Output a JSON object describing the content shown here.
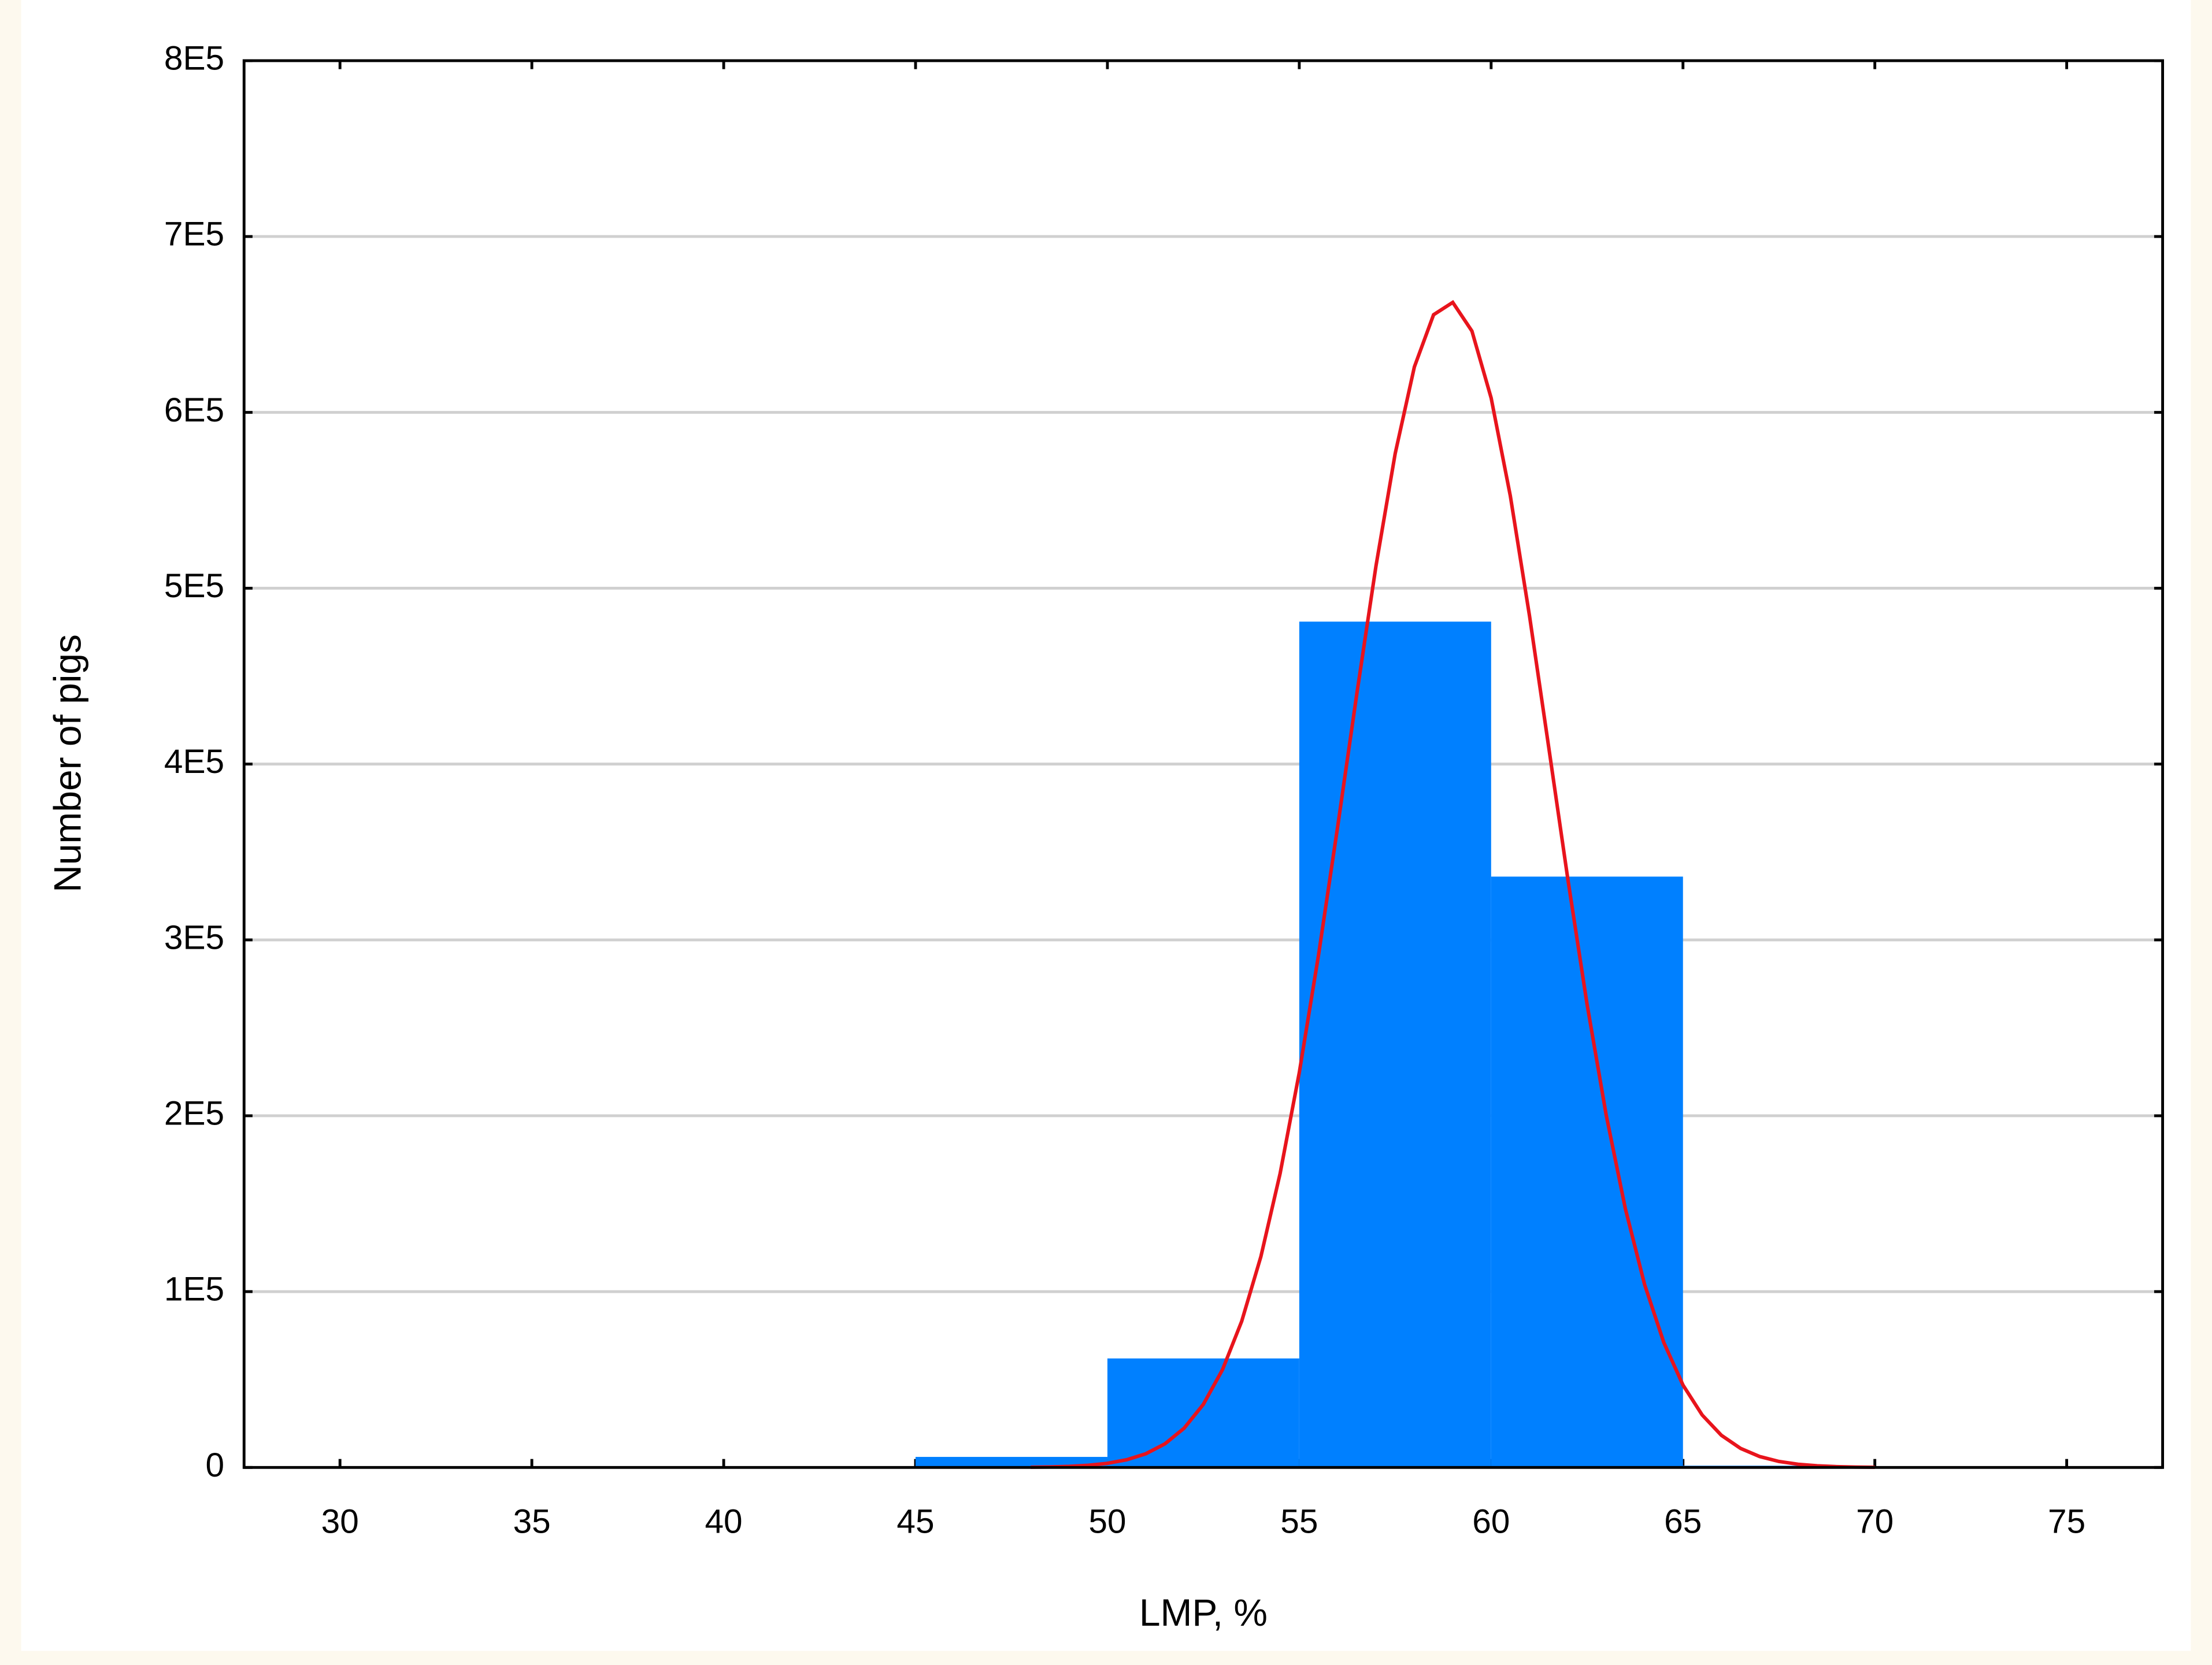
{
  "chart_data": {
    "type": "histogram",
    "xlabel": "LMP, %",
    "ylabel": "Number of pigs",
    "bins": [
      45,
      50,
      55,
      60,
      65,
      70
    ],
    "counts": [
      6000,
      62000,
      481000,
      336000,
      1000
    ],
    "color": "#0080ff",
    "fit_curve": {
      "color": "#e8141c",
      "x": [
        48,
        48.5,
        49,
        49.5,
        50,
        50.5,
        51,
        51.5,
        52,
        52.5,
        53,
        53.5,
        54,
        54.5,
        55,
        55.5,
        56,
        56.5,
        57,
        57.5,
        58,
        58.5,
        59,
        59.5,
        60,
        60.5,
        61,
        61.5,
        62,
        62.5,
        63,
        63.5,
        64,
        64.5,
        65,
        65.5,
        66,
        66.5,
        67,
        67.5,
        68,
        68.5,
        69,
        69.5,
        70
      ],
      "y": [
        141,
        300,
        618,
        1229,
        2354,
        4363,
        7790,
        13440,
        22350,
        35890,
        55630,
        83140,
        119940,
        167080,
        224490,
        291120,
        364320,
        439970,
        512760,
        576610,
        625870,
        655510,
        662540,
        646230,
        608240,
        552540,
        484320,
        409730,
        334480,
        263480,
        200290,
        146990,
        104020,
        71070,
        46870,
        29840,
        18310,
        10850,
        6210,
        3420,
        1820,
        935,
        464,
        222,
        103
      ]
    },
    "xlim": [
      27.5,
      77.5
    ],
    "ylim": [
      0,
      800000
    ],
    "xticks": [
      30,
      35,
      40,
      45,
      50,
      55,
      60,
      65,
      70,
      75
    ],
    "yticks": [
      0,
      {
        "value": 100000,
        "label": "1E5"
      },
      {
        "value": 200000,
        "label": "2E5"
      },
      {
        "value": 300000,
        "label": "3E5"
      },
      {
        "value": 400000,
        "label": "4E5"
      },
      {
        "value": 500000,
        "label": "5E5"
      },
      {
        "value": 600000,
        "label": "6E5"
      },
      {
        "value": 700000,
        "label": "7E5"
      },
      {
        "value": 800000,
        "label": "8E5"
      }
    ],
    "grid": true
  }
}
